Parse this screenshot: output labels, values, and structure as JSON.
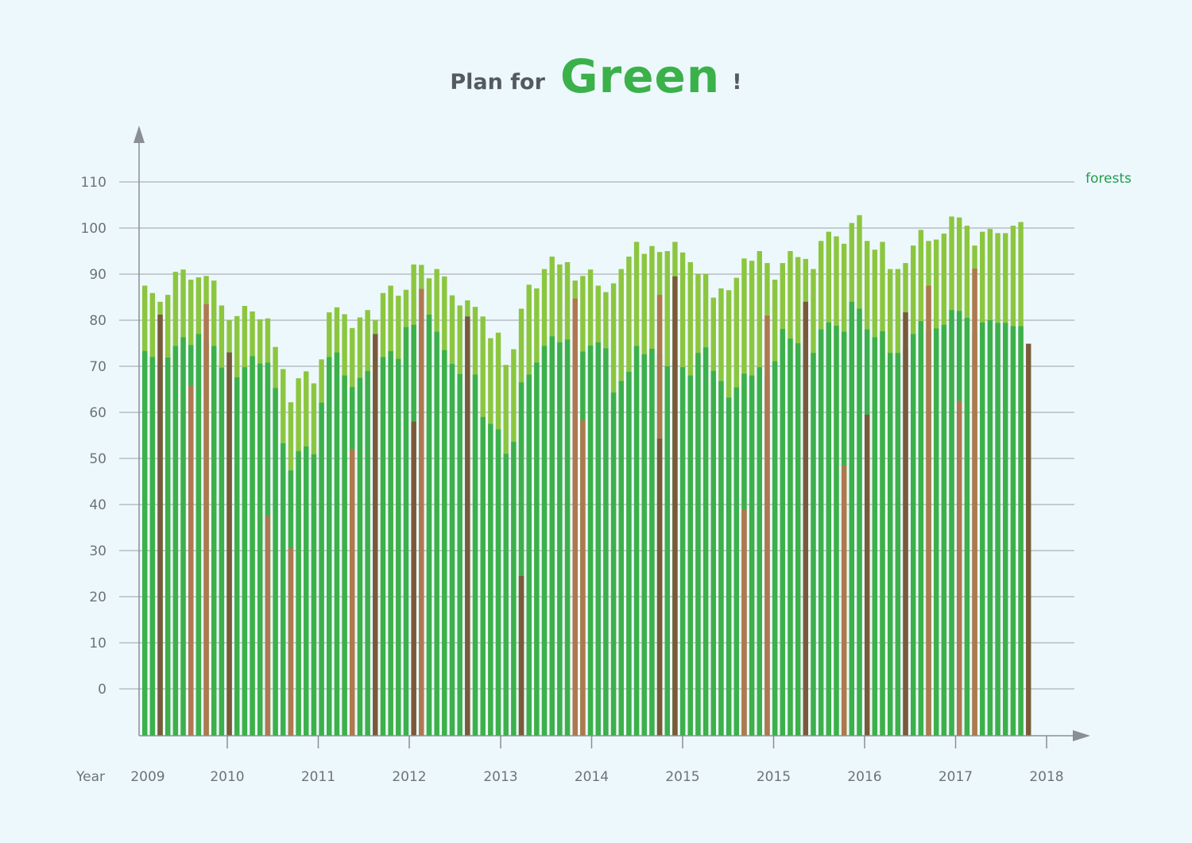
{
  "chart_data": {
    "type": "bar",
    "title_prefix": "Plan for",
    "title_main": "Green",
    "title_suffix": "!",
    "xlabel": "Year",
    "reference_line": {
      "label": "forests",
      "value": 110
    },
    "y_ticks": [
      0,
      10,
      20,
      30,
      40,
      50,
      60,
      70,
      80,
      90,
      100,
      110
    ],
    "ylim": [
      -10,
      117
    ],
    "grid": true,
    "x_tick_labels": [
      "2009",
      "2010",
      "2011",
      "2012",
      "2013",
      "2014",
      "2015",
      "2015",
      "2016",
      "2017",
      "2018"
    ],
    "colors": {
      "top": "#8cc63f",
      "base": "#3cb04b",
      "brown": "#b07850",
      "dark": "#7a5a3a",
      "text": "#6d7378",
      "axis": "#8a8f93",
      "forests_label": "#1f9e4a"
    },
    "series": [
      {
        "name": "top",
        "values": [
          87.5,
          85.9,
          84,
          85.5,
          90.5,
          91,
          88.8,
          89.3,
          89.6,
          88.6,
          83.2,
          80,
          80.9,
          83.1,
          81.9,
          80.2,
          80.4,
          74.2,
          69.4,
          62.2,
          67.4,
          68.9,
          66.3,
          71.5,
          81.7,
          82.8,
          81.3,
          78.3,
          80.6,
          82.2,
          80,
          85.9,
          87.5,
          85.3,
          86.6,
          92.1,
          92,
          89.1,
          91.1,
          89.5,
          85.4,
          83.2,
          84.3,
          82.9,
          80.8,
          76.1,
          77.3,
          70.3,
          73.7,
          82.5,
          87.7,
          86.9,
          91.1,
          93.8,
          92.1,
          92.6,
          88.6,
          89.6,
          91,
          87.5,
          86.1,
          88,
          91.1,
          93.8,
          97,
          94.4,
          96.1,
          94.8,
          95,
          97,
          94.7,
          92.6,
          90.1,
          90.1,
          84.9,
          86.9,
          86.5,
          89.2,
          93.4,
          92.9,
          95,
          92.4,
          88.8,
          92.4,
          95,
          93.7,
          93.3,
          91.1,
          97.2,
          99.2,
          98.2,
          96.6,
          101.1,
          102.8,
          97.2,
          95.3,
          97,
          91.1,
          91.1,
          92.4,
          96.2,
          99.6,
          97.2,
          97.5,
          98.8,
          102.5,
          102.3,
          100.5,
          96.2,
          99.2,
          99.8,
          98.9,
          98.9,
          100.5,
          101.3
        ],
        "type": "bar"
      },
      {
        "name": "base",
        "values": [
          73.3,
          72,
          70.5,
          71.9,
          74.4,
          76.3,
          74.6,
          77,
          75.4,
          74.4,
          69.7,
          73,
          67.6,
          69.8,
          72.2,
          70.6,
          70.8,
          65.3,
          53.3,
          47.4,
          51.6,
          52.6,
          50.9,
          62.1,
          72,
          73,
          68,
          65.5,
          67.5,
          69,
          67,
          72,
          73.3,
          71.6,
          78.5,
          79,
          79,
          81.2,
          77.5,
          73.5,
          70.5,
          68.3,
          69.3,
          68.2,
          59,
          57.5,
          56.3,
          51,
          53.6,
          66.5,
          68.2,
          70.8,
          74.4,
          76.5,
          75.2,
          75.8,
          72.3,
          73.2,
          74.5,
          75.2,
          73.9,
          64.3,
          66.8,
          68.8,
          74.4,
          72.6,
          73.8,
          72.6,
          70,
          71.2,
          69.8,
          68,
          72.9,
          74.1,
          69,
          66.8,
          63.2,
          65.4,
          68.4,
          68,
          69.8,
          67.8,
          71.1,
          78.1,
          76,
          75,
          74.5,
          72.9,
          78,
          79.5,
          78.8,
          77.5,
          84,
          82.5,
          78,
          76.3,
          77.6,
          72.9,
          72.9,
          74,
          77,
          79.8,
          77.9,
          78.2,
          79,
          82.2,
          82,
          80.5,
          77.1,
          79.5,
          80,
          79.4,
          79.4,
          78.7,
          78.7
        ],
        "type": "bar"
      },
      {
        "name": "highlight",
        "entries": [
          {
            "index": 2,
            "value": 81.2,
            "style": "dark"
          },
          {
            "index": 6,
            "value": 65.8,
            "style": "brown"
          },
          {
            "index": 8,
            "value": 83.5,
            "style": "brown"
          },
          {
            "index": 11,
            "value": 73,
            "style": "dark"
          },
          {
            "index": 16,
            "value": 37.5,
            "style": "brown"
          },
          {
            "index": 19,
            "value": 30.5,
            "style": "brown"
          },
          {
            "index": 27,
            "value": 52,
            "style": "brown"
          },
          {
            "index": 30,
            "value": 77,
            "style": "dark"
          },
          {
            "index": 35,
            "value": 58,
            "style": "dark"
          },
          {
            "index": 36,
            "value": 86.8,
            "style": "brown"
          },
          {
            "index": 42,
            "value": 80.8,
            "style": "dark"
          },
          {
            "index": 49,
            "value": 24.5,
            "style": "dark"
          },
          {
            "index": 56,
            "value": 84.7,
            "style": "brown"
          },
          {
            "index": 57,
            "value": 58.3,
            "style": "brown"
          },
          {
            "index": 67,
            "value": 85.5,
            "style": "brown"
          },
          {
            "index": 67,
            "value": 54.3,
            "style": "dark"
          },
          {
            "index": 69,
            "value": 89.5,
            "style": "dark"
          },
          {
            "index": 78,
            "value": 38.8,
            "style": "brown"
          },
          {
            "index": 81,
            "value": 81,
            "style": "brown"
          },
          {
            "index": 86,
            "value": 84,
            "style": "dark"
          },
          {
            "index": 91,
            "value": 48.5,
            "style": "brown"
          },
          {
            "index": 94,
            "value": 59.5,
            "style": "dark"
          },
          {
            "index": 99,
            "value": 81.7,
            "style": "dark"
          },
          {
            "index": 102,
            "value": 87.5,
            "style": "brown"
          },
          {
            "index": 106,
            "value": 62.5,
            "style": "brown"
          },
          {
            "index": 108,
            "value": 91.2,
            "style": "brown"
          },
          {
            "index": 115,
            "value": 74.9,
            "style": "dark"
          }
        ],
        "type": "bar"
      }
    ]
  }
}
